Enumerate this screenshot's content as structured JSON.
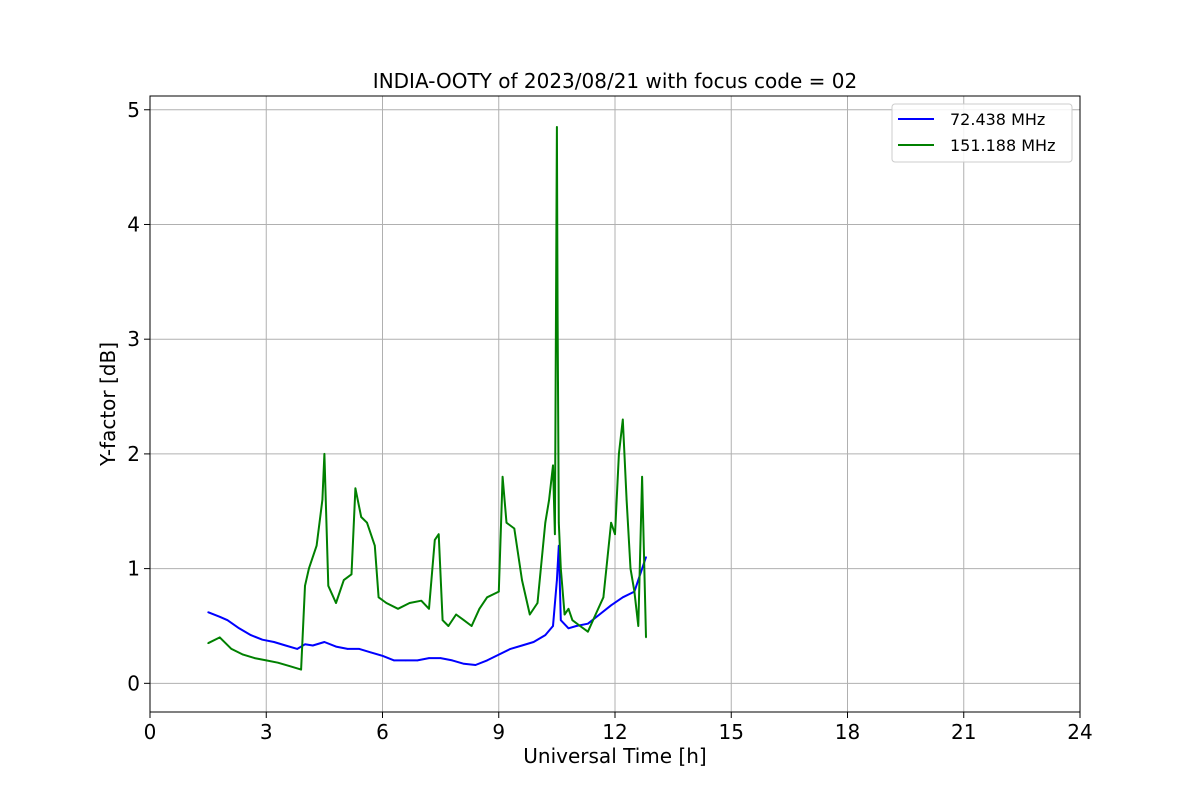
{
  "chart_data": {
    "type": "line",
    "title": "INDIA-OOTY of 2023/08/21 with focus code = 02",
    "xlabel": "Universal Time [h]",
    "ylabel": "Y-factor [dB]",
    "xlim": [
      0,
      24
    ],
    "ylim": [
      -0.25,
      5.12
    ],
    "xticks": [
      0,
      3,
      6,
      9,
      12,
      15,
      18,
      21,
      24
    ],
    "yticks": [
      0,
      1,
      2,
      3,
      4,
      5
    ],
    "grid": true,
    "legend_position": "top-right",
    "series": [
      {
        "name": "  72.438 MHz",
        "color": "#0000ff",
        "x": [
          1.5,
          1.8,
          2.0,
          2.3,
          2.6,
          2.9,
          3.2,
          3.5,
          3.8,
          4.0,
          4.2,
          4.5,
          4.8,
          5.1,
          5.4,
          5.7,
          6.0,
          6.3,
          6.6,
          6.9,
          7.2,
          7.5,
          7.8,
          8.1,
          8.4,
          8.7,
          9.0,
          9.3,
          9.6,
          9.9,
          10.2,
          10.4,
          10.5,
          10.55,
          10.6,
          10.8,
          11.0,
          11.3,
          11.6,
          11.9,
          12.2,
          12.5,
          12.8
        ],
        "y": [
          0.62,
          0.58,
          0.55,
          0.48,
          0.42,
          0.38,
          0.36,
          0.33,
          0.3,
          0.34,
          0.33,
          0.36,
          0.32,
          0.3,
          0.3,
          0.27,
          0.24,
          0.2,
          0.2,
          0.2,
          0.22,
          0.22,
          0.2,
          0.17,
          0.16,
          0.2,
          0.25,
          0.3,
          0.33,
          0.36,
          0.42,
          0.5,
          0.9,
          1.2,
          0.55,
          0.48,
          0.5,
          0.52,
          0.6,
          0.68,
          0.75,
          0.8,
          1.1
        ]
      },
      {
        "name": "151.188 MHz",
        "color": "#008000",
        "x": [
          1.5,
          1.8,
          2.1,
          2.4,
          2.7,
          3.0,
          3.3,
          3.6,
          3.9,
          4.0,
          4.1,
          4.3,
          4.45,
          4.5,
          4.6,
          4.8,
          5.0,
          5.2,
          5.3,
          5.45,
          5.6,
          5.8,
          5.9,
          6.1,
          6.4,
          6.7,
          7.0,
          7.2,
          7.35,
          7.45,
          7.55,
          7.7,
          7.9,
          8.1,
          8.3,
          8.5,
          8.7,
          9.0,
          9.1,
          9.2,
          9.4,
          9.6,
          9.8,
          10.0,
          10.2,
          10.3,
          10.4,
          10.45,
          10.5,
          10.52,
          10.55,
          10.6,
          10.7,
          10.8,
          10.9,
          11.1,
          11.3,
          11.5,
          11.7,
          11.9,
          12.0,
          12.1,
          12.2,
          12.3,
          12.4,
          12.5,
          12.6,
          12.7,
          12.8
        ],
        "y": [
          0.35,
          0.4,
          0.3,
          0.25,
          0.22,
          0.2,
          0.18,
          0.15,
          0.12,
          0.85,
          1.0,
          1.2,
          1.6,
          2.0,
          0.85,
          0.7,
          0.9,
          0.95,
          1.7,
          1.45,
          1.4,
          1.2,
          0.75,
          0.7,
          0.65,
          0.7,
          0.72,
          0.65,
          1.25,
          1.3,
          0.55,
          0.5,
          0.6,
          0.55,
          0.5,
          0.65,
          0.75,
          0.8,
          1.8,
          1.4,
          1.35,
          0.9,
          0.6,
          0.7,
          1.4,
          1.6,
          1.9,
          1.3,
          4.85,
          3.2,
          1.4,
          1.0,
          0.6,
          0.65,
          0.55,
          0.5,
          0.45,
          0.6,
          0.75,
          1.4,
          1.3,
          2.0,
          2.3,
          1.6,
          1.0,
          0.8,
          0.5,
          1.8,
          0.4
        ]
      }
    ]
  }
}
